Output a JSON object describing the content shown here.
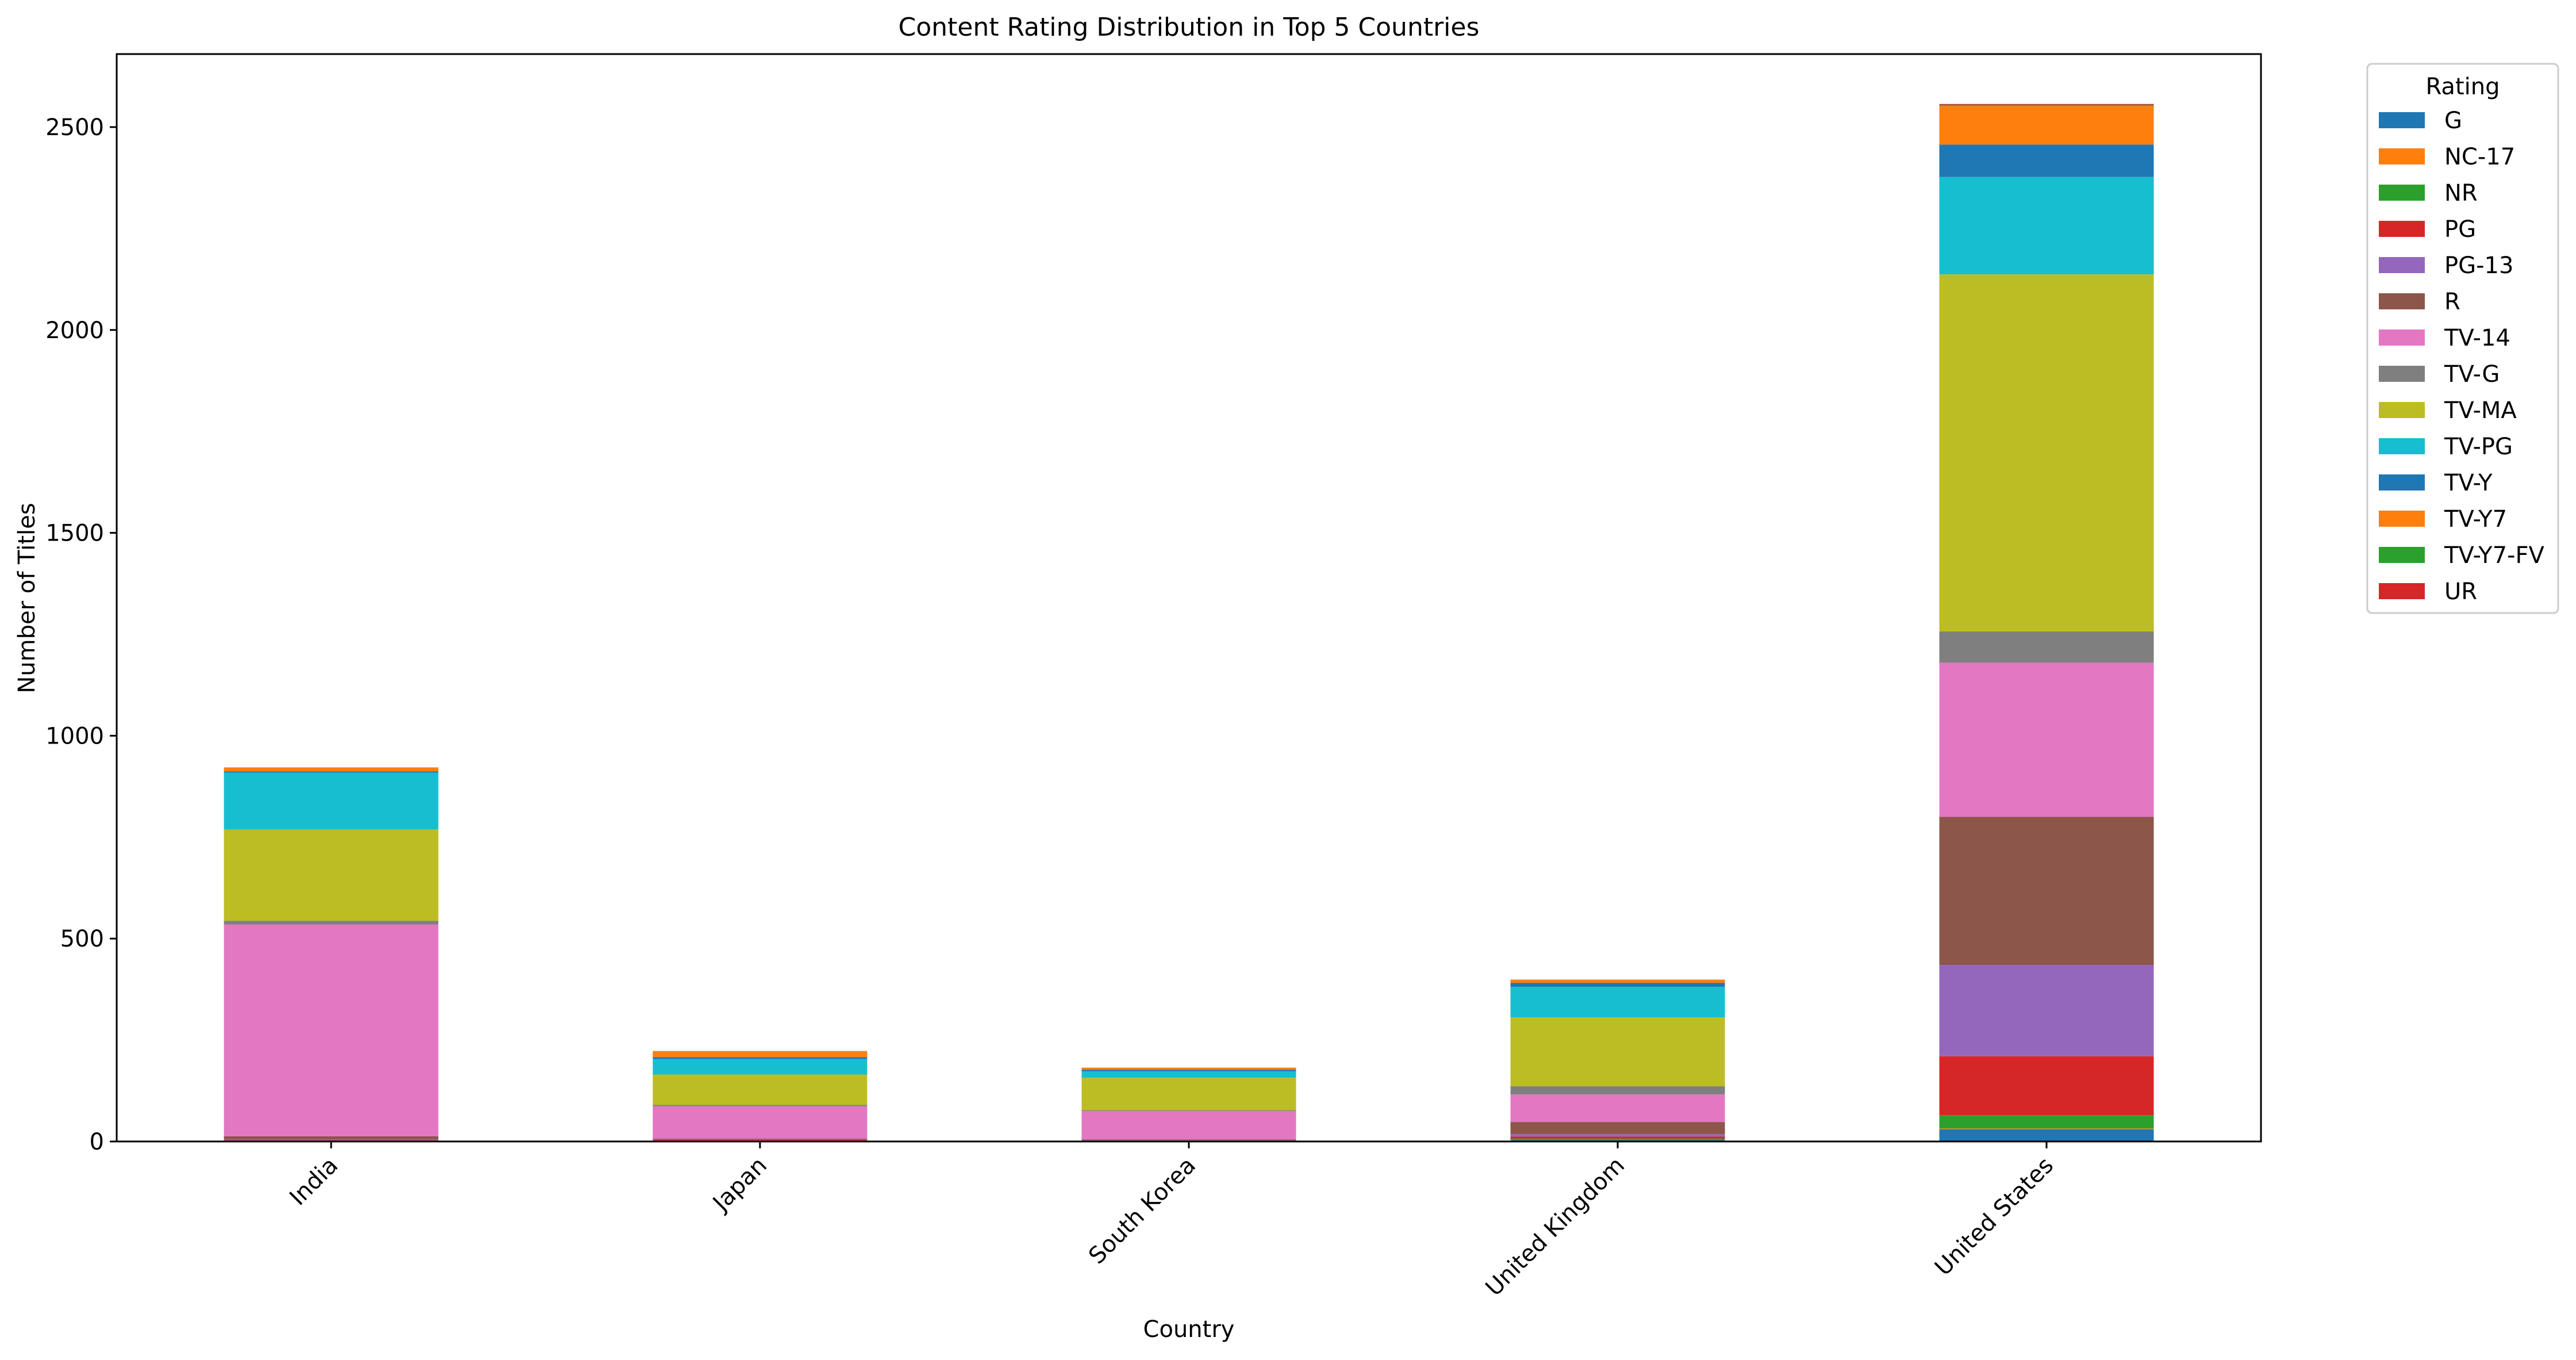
{
  "chart_data": {
    "type": "bar",
    "stacked": true,
    "title": "Content Rating Distribution in Top 5 Countries",
    "xlabel": "Country",
    "ylabel": "Number of Titles",
    "categories": [
      "India",
      "Japan",
      "South Korea",
      "United Kingdom",
      "United States"
    ],
    "yticks": [
      0,
      500,
      1000,
      1500,
      2000,
      2500
    ],
    "ylim": [
      0,
      2680
    ],
    "grid": false,
    "legend": {
      "title": "Rating",
      "placement": "outside-top-right"
    },
    "series": [
      {
        "name": "G",
        "color": "#1f77b4",
        "values": [
          0,
          0,
          0,
          3,
          30
        ]
      },
      {
        "name": "NC-17",
        "color": "#ff7f0e",
        "values": [
          0,
          0,
          0,
          0,
          2
        ]
      },
      {
        "name": "NR",
        "color": "#2ca02c",
        "values": [
          2,
          1,
          1,
          4,
          33
        ]
      },
      {
        "name": "PG",
        "color": "#d62728",
        "values": [
          1,
          3,
          1,
          5,
          145
        ]
      },
      {
        "name": "PG-13",
        "color": "#9467bd",
        "values": [
          2,
          1,
          1,
          6,
          225
        ]
      },
      {
        "name": "R",
        "color": "#8c564b",
        "values": [
          8,
          2,
          2,
          30,
          365
        ]
      },
      {
        "name": "TV-14",
        "color": "#e377c2",
        "values": [
          522,
          80,
          70,
          68,
          380
        ]
      },
      {
        "name": "TV-G",
        "color": "#7f7f7f",
        "values": [
          9,
          3,
          2,
          20,
          77
        ]
      },
      {
        "name": "TV-MA",
        "color": "#bcbd22",
        "values": [
          225,
          75,
          80,
          170,
          880
        ]
      },
      {
        "name": "TV-PG",
        "color": "#17becf",
        "values": [
          140,
          38,
          16,
          75,
          240
        ]
      },
      {
        "name": "TV-Y",
        "color": "#1f77b4",
        "values": [
          3,
          5,
          4,
          10,
          80
        ]
      },
      {
        "name": "TV-Y7",
        "color": "#ff7f0e",
        "values": [
          10,
          15,
          5,
          8,
          95
        ]
      },
      {
        "name": "TV-Y7-FV",
        "color": "#2ca02c",
        "values": [
          0,
          0,
          0,
          0,
          3
        ]
      },
      {
        "name": "UR",
        "color": "#d62728",
        "values": [
          0,
          0,
          0,
          0,
          2
        ]
      }
    ]
  }
}
